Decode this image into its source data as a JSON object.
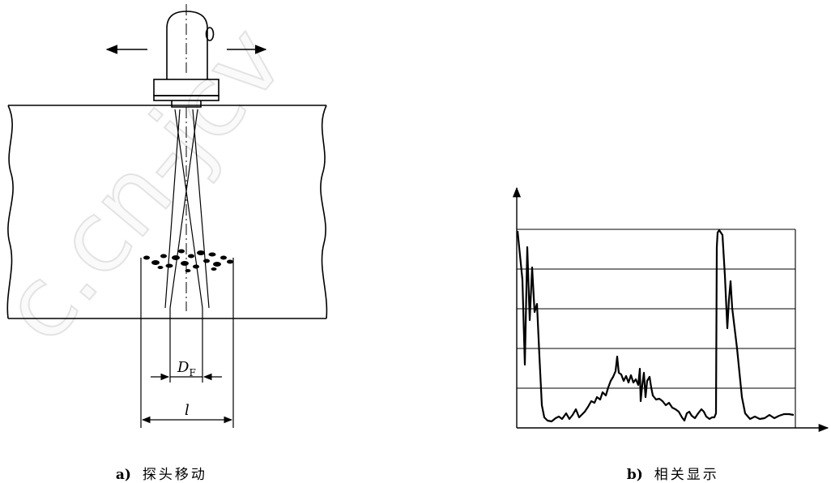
{
  "watermark": "c.cn-jcv",
  "panel_a": {
    "caption_label": "a)",
    "caption_text": "探头移动",
    "label_df": "D",
    "label_df_sub": "F",
    "label_l": "l"
  },
  "panel_b": {
    "caption_label": "b)",
    "caption_text": "相关显示"
  },
  "colors": {
    "line": "#000000",
    "background": "#ffffff"
  }
}
